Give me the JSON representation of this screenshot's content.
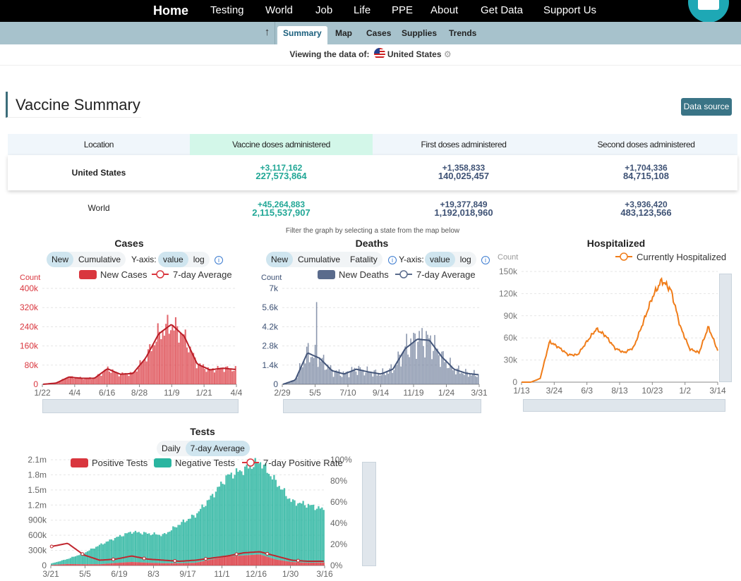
{
  "nav": {
    "home": "Home",
    "testing": "Testing",
    "world": "World",
    "job": "Job",
    "life": "Life",
    "ppe": "PPE",
    "about": "About",
    "get_data": "Get Data",
    "support": "Support Us"
  },
  "subnav": {
    "up_icon": "arrow-up-icon",
    "summary": "Summary",
    "map": "Map",
    "cases": "Cases",
    "supplies": "Supplies",
    "trends": "Trends"
  },
  "viewing": {
    "label": "Viewing the data of:",
    "country": "United States",
    "flag_icon": "us-flag-icon",
    "settings_icon": "gear-icon"
  },
  "vaccine": {
    "title": "Vaccine Summary",
    "data_source": "Data source",
    "headers": {
      "location": "Location",
      "doses": "Vaccine doses administered",
      "first": "First doses administered",
      "second": "Second doses administered"
    },
    "us": {
      "name": "United States",
      "doses_delta": "+3,117,162",
      "doses_total": "227,573,864",
      "first_delta": "+1,358,833",
      "first_total": "140,025,457",
      "second_delta": "+1,704,336",
      "second_total": "84,715,108"
    },
    "world": {
      "name": "World",
      "doses_delta": "+45,264,883",
      "doses_total": "2,115,537,907",
      "first_delta": "+19,377,849",
      "first_total": "1,192,018,960",
      "second_delta": "+3,936,420",
      "second_total": "483,123,566"
    }
  },
  "filter_note": "Filter the graph by selecting a state from the map below",
  "controls": {
    "new": "New",
    "cumulative": "Cumulative",
    "fatality": "Fatality",
    "yaxis": "Y-axis:",
    "value": "value",
    "log": "log",
    "daily": "Daily",
    "avg7": "7-day Average",
    "info_icon": "info-icon"
  },
  "colors": {
    "cases": "#d9363e",
    "deaths": "#5a6b8c",
    "hospital": "#f07d1a",
    "positive": "#d9363e",
    "negative": "#2ab5a0",
    "subnav": "#a7c2cc",
    "accent": "#3a7486"
  },
  "chart_data": [
    {
      "id": "cases",
      "type": "bar",
      "title": "Cases",
      "ylabel": "Count",
      "legend": [
        "New Cases",
        "7-day Average"
      ],
      "yticks": [
        "0",
        "80k",
        "160k",
        "240k",
        "320k",
        "400k"
      ],
      "ylim": [
        0,
        400000
      ],
      "xticks": [
        "1/22",
        "4/4",
        "6/16",
        "8/28",
        "11/9",
        "1/21",
        "4/4"
      ],
      "x": [
        "1/22",
        "3/1",
        "4/4",
        "5/10",
        "6/16",
        "7/20",
        "8/28",
        "10/1",
        "11/9",
        "12/15",
        "1/10",
        "1/21",
        "2/15",
        "3/10",
        "4/4",
        "4/20"
      ],
      "values": [
        0,
        5000,
        30000,
        25000,
        25000,
        65000,
        42000,
        45000,
        110000,
        210000,
        250000,
        200000,
        85000,
        60000,
        67000,
        62000
      ]
    },
    {
      "id": "deaths",
      "type": "bar",
      "title": "Deaths",
      "ylabel": "Count",
      "legend": [
        "New Deaths",
        "7-day Average"
      ],
      "yticks": [
        "0",
        "1.4k",
        "2.8k",
        "4.2k",
        "5.6k",
        "7k"
      ],
      "ylim": [
        0,
        7000
      ],
      "xticks": [
        "2/29",
        "5/5",
        "7/10",
        "9/14",
        "11/19",
        "1/24",
        "3/31"
      ],
      "x": [
        "2/29",
        "3/25",
        "4/15",
        "5/5",
        "6/1",
        "7/10",
        "8/10",
        "9/14",
        "10/15",
        "11/19",
        "12/15",
        "1/10",
        "1/24",
        "2/15",
        "3/10",
        "3/31",
        "4/20"
      ],
      "values": [
        0,
        300,
        2300,
        1900,
        1000,
        750,
        1100,
        900,
        750,
        1100,
        2600,
        3300,
        3200,
        2000,
        1100,
        800,
        700
      ]
    },
    {
      "id": "hospitalized",
      "type": "line",
      "title": "Hospitalized",
      "ylabel": "Count",
      "xlabel": "date",
      "legend": [
        "Currently Hospitalized"
      ],
      "yticks": [
        "0",
        "30k",
        "60k",
        "90k",
        "120k",
        "150k"
      ],
      "ylim": [
        0,
        150000
      ],
      "xticks": [
        "1/13",
        "3/24",
        "6/3",
        "8/13",
        "10/23",
        "1/2",
        "3/14"
      ],
      "x": [
        "1/13",
        "3/10",
        "3/24",
        "4/10",
        "5/1",
        "6/3",
        "6/20",
        "7/10",
        "7/25",
        "8/13",
        "9/10",
        "10/1",
        "10/23",
        "11/15",
        "12/10",
        "1/2",
        "1/25",
        "2/15",
        "3/5",
        "3/14",
        "3/28",
        "4/5"
      ],
      "values": [
        0,
        0,
        5000,
        55000,
        47000,
        37000,
        37000,
        55000,
        72000,
        63000,
        46000,
        40000,
        47000,
        80000,
        115000,
        138000,
        125000,
        75000,
        45000,
        40000,
        75000,
        43000
      ]
    },
    {
      "id": "tests",
      "type": "bar",
      "title": "Tests",
      "legend": [
        "Positive Tests",
        "Negative Tests",
        "7-day Positive Rate"
      ],
      "yticks": [
        "0",
        "300k",
        "600k",
        "900k",
        "1.2m",
        "1.5m",
        "1.8m",
        "2.1m"
      ],
      "ylim": [
        0,
        2100000
      ],
      "y2ticks": [
        "0%",
        "20%",
        "40%",
        "60%",
        "80%",
        "100%"
      ],
      "xticks": [
        "3/21",
        "5/5",
        "6/19",
        "8/3",
        "9/17",
        "11/1",
        "12/16",
        "1/30",
        "3/16"
      ],
      "x": [
        "3/21",
        "4/10",
        "5/5",
        "6/1",
        "6/19",
        "7/15",
        "8/3",
        "8/25",
        "9/17",
        "10/10",
        "11/1",
        "11/25",
        "12/16",
        "1/10",
        "1/30",
        "2/20",
        "3/16",
        "4/10"
      ],
      "negative": [
        30000,
        100000,
        220000,
        380000,
        500000,
        600000,
        580000,
        560000,
        780000,
        950000,
        1250000,
        1600000,
        1700000,
        1850000,
        1550000,
        1200000,
        1150000,
        1050000
      ],
      "positive": [
        10000,
        30000,
        25000,
        25000,
        50000,
        70000,
        55000,
        45000,
        45000,
        55000,
        120000,
        180000,
        200000,
        220000,
        120000,
        70000,
        55000,
        60000
      ],
      "rate": [
        0.18,
        0.21,
        0.1,
        0.05,
        0.06,
        0.09,
        0.06,
        0.05,
        0.04,
        0.05,
        0.07,
        0.09,
        0.12,
        0.13,
        0.09,
        0.05,
        0.04,
        0.04
      ]
    }
  ]
}
